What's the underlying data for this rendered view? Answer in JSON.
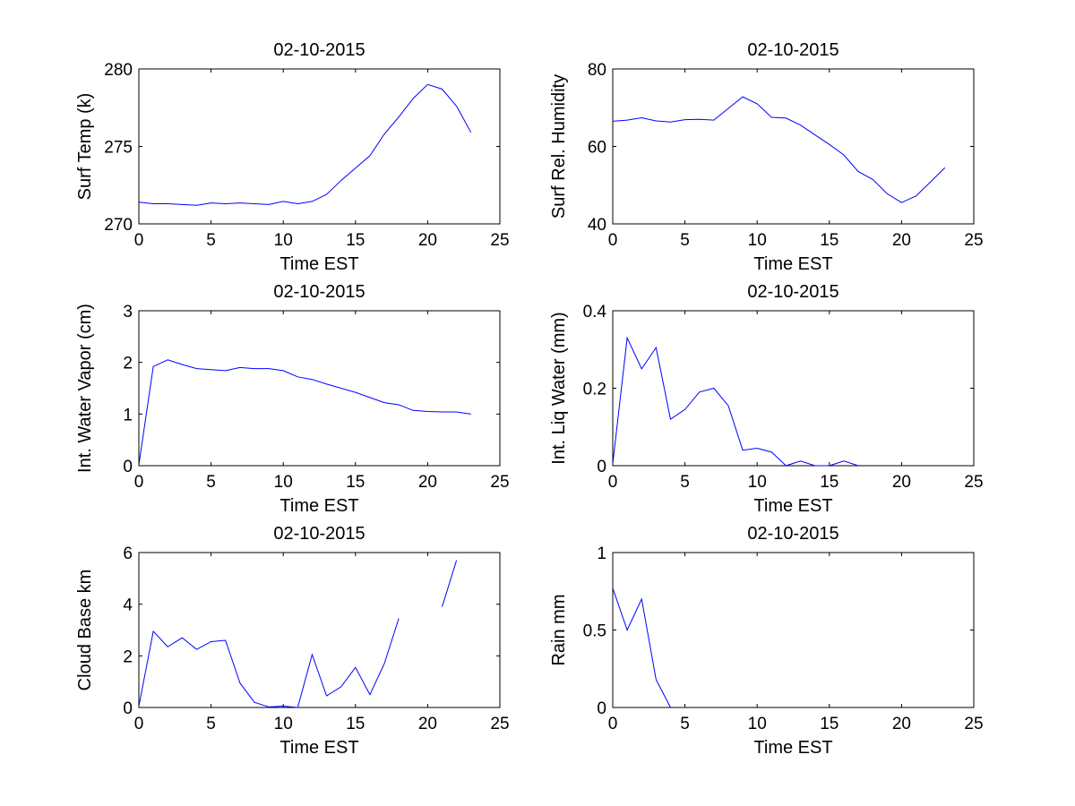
{
  "colors": {
    "line": "#0000ff",
    "axes": "#000000",
    "background": "#ffffff"
  },
  "chart_data": [
    {
      "type": "line",
      "title": "02-10-2015",
      "xlabel": "Time EST",
      "ylabel": "Surf Temp (k)",
      "xlim": [
        0,
        25
      ],
      "ylim": [
        270,
        280
      ],
      "xticks": [
        "0",
        "5",
        "10",
        "15",
        "20",
        "25"
      ],
      "yticks": [
        "270",
        "275",
        "280"
      ],
      "series": [
        {
          "name": "Surf Temp (k)",
          "x": [
            0,
            1,
            2,
            3,
            4,
            5,
            6,
            7,
            8,
            9,
            10,
            11,
            12,
            13,
            14,
            15,
            16,
            17,
            18,
            19,
            20,
            21,
            22,
            23
          ],
          "y": [
            271.4,
            271.3,
            271.3,
            271.25,
            271.2,
            271.35,
            271.3,
            271.35,
            271.3,
            271.25,
            271.45,
            271.3,
            271.45,
            271.9,
            272.8,
            273.6,
            274.4,
            275.8,
            276.9,
            278.1,
            279.0,
            278.7,
            277.6,
            275.9
          ]
        }
      ]
    },
    {
      "type": "line",
      "title": "02-10-2015",
      "xlabel": "Time EST",
      "ylabel": "Surf Rel. Humidity",
      "xlim": [
        0,
        25
      ],
      "ylim": [
        40,
        80
      ],
      "xticks": [
        "0",
        "5",
        "10",
        "15",
        "20",
        "25"
      ],
      "yticks": [
        "40",
        "60",
        "80"
      ],
      "series": [
        {
          "name": "Surf Rel. Humidity",
          "x": [
            0,
            1,
            2,
            3,
            4,
            5,
            6,
            7,
            8,
            9,
            10,
            11,
            12,
            13,
            14,
            15,
            16,
            17,
            18,
            19,
            20,
            21,
            22,
            23
          ],
          "y": [
            66.5,
            66.8,
            67.4,
            66.6,
            66.3,
            66.9,
            67.0,
            66.8,
            69.8,
            72.8,
            71.0,
            67.5,
            67.3,
            65.5,
            63.0,
            60.5,
            57.8,
            53.5,
            51.5,
            47.8,
            45.5,
            47.2,
            50.8,
            54.5
          ]
        }
      ]
    },
    {
      "type": "line",
      "title": "02-10-2015",
      "xlabel": "Time EST",
      "ylabel": "Int. Water Vapor (cm)",
      "xlim": [
        0,
        25
      ],
      "ylim": [
        0,
        3
      ],
      "xticks": [
        "0",
        "5",
        "10",
        "15",
        "20",
        "25"
      ],
      "yticks": [
        "0",
        "1",
        "2",
        "3"
      ],
      "series": [
        {
          "name": "Int. Water Vapor (cm)",
          "x": [
            0,
            1,
            2,
            3,
            4,
            5,
            6,
            7,
            8,
            9,
            10,
            11,
            12,
            13,
            14,
            15,
            16,
            17,
            18,
            19,
            20,
            21,
            22,
            23
          ],
          "y": [
            0.02,
            1.92,
            2.05,
            1.96,
            1.88,
            1.86,
            1.84,
            1.9,
            1.88,
            1.88,
            1.84,
            1.72,
            1.67,
            1.58,
            1.5,
            1.42,
            1.32,
            1.22,
            1.18,
            1.07,
            1.05,
            1.04,
            1.04,
            1.0
          ]
        }
      ]
    },
    {
      "type": "line",
      "title": "02-10-2015",
      "xlabel": "Time EST",
      "ylabel": "Int. Liq Water (mm)",
      "xlim": [
        0,
        25
      ],
      "ylim": [
        0,
        0.4
      ],
      "xticks": [
        "0",
        "5",
        "10",
        "15",
        "20",
        "25"
      ],
      "yticks": [
        "0",
        "0.2",
        "0.4"
      ],
      "series": [
        {
          "name": "Int. Liq Water (mm)",
          "x": [
            0,
            1,
            2,
            3,
            4,
            5,
            6,
            7,
            8,
            9,
            10,
            11,
            12,
            13,
            14,
            15,
            16,
            17
          ],
          "y": [
            0.005,
            0.33,
            0.25,
            0.305,
            0.12,
            0.145,
            0.19,
            0.2,
            0.155,
            0.04,
            0.045,
            0.035,
            0.0,
            0.012,
            0.0,
            0.0,
            0.012,
            0.0
          ]
        }
      ]
    },
    {
      "type": "line",
      "title": "02-10-2015",
      "xlabel": "Time EST",
      "ylabel": "Cloud Base km",
      "xlim": [
        0,
        25
      ],
      "ylim": [
        0,
        6
      ],
      "xticks": [
        "0",
        "5",
        "10",
        "15",
        "20",
        "25"
      ],
      "yticks": [
        "0",
        "2",
        "4",
        "6"
      ],
      "series": [
        {
          "name": "Cloud Base km",
          "x": [
            0,
            1,
            2,
            3,
            4,
            5,
            6,
            7,
            8,
            9,
            10,
            11,
            12,
            13,
            14,
            15,
            16,
            17,
            18,
            19,
            20,
            21,
            22
          ],
          "y": [
            0.05,
            2.95,
            2.35,
            2.7,
            2.25,
            2.55,
            2.6,
            0.95,
            0.2,
            0.02,
            0.05,
            0.0,
            2.05,
            0.45,
            0.8,
            1.55,
            0.5,
            1.7,
            3.45,
            null,
            null,
            3.9,
            5.7
          ]
        }
      ]
    },
    {
      "type": "line",
      "title": "02-10-2015",
      "xlabel": "Time EST",
      "ylabel": "Rain mm",
      "xlim": [
        0,
        25
      ],
      "ylim": [
        0,
        1
      ],
      "xticks": [
        "0",
        "5",
        "10",
        "15",
        "20",
        "25"
      ],
      "yticks": [
        "0",
        "0.5",
        "1"
      ],
      "series": [
        {
          "name": "Rain mm",
          "x": [
            0,
            1,
            2,
            3,
            4
          ],
          "y": [
            0.77,
            0.5,
            0.7,
            0.18,
            0.0
          ]
        }
      ]
    }
  ]
}
